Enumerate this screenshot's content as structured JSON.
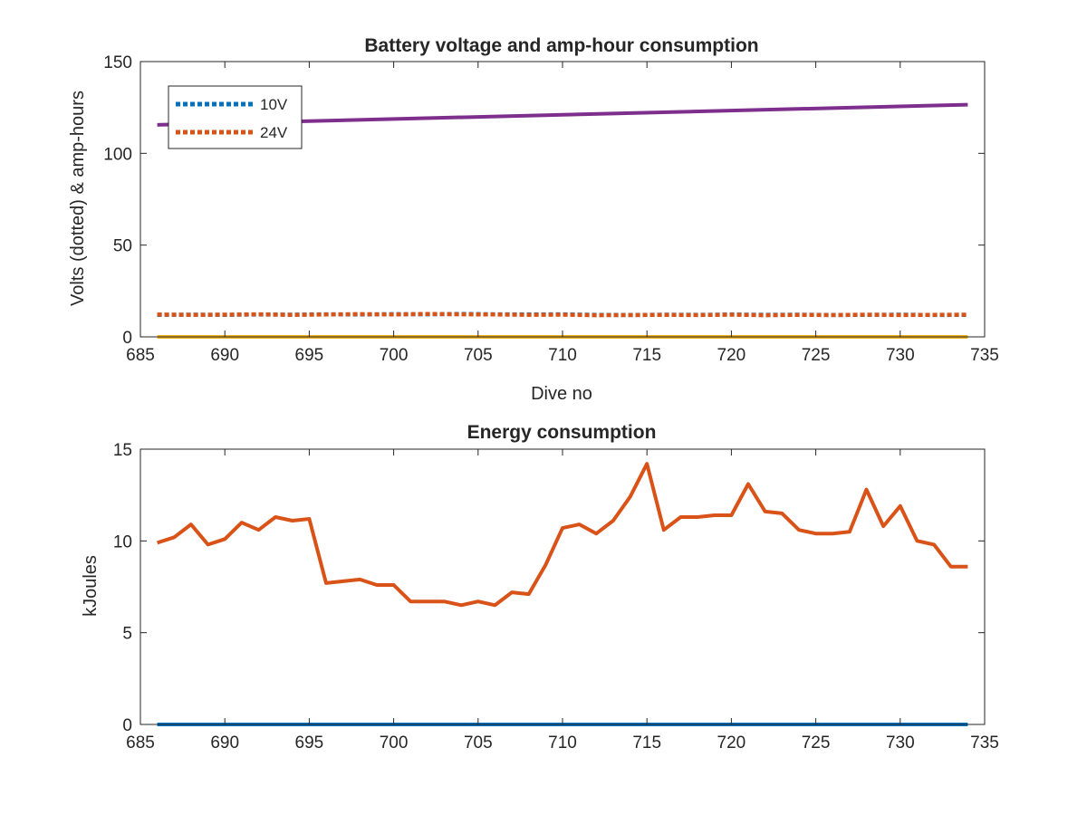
{
  "colors": {
    "series_10v": "#0072BD",
    "series_24v": "#D95319",
    "series_ah": "#7E2F8E",
    "series_zero": "#EDB120",
    "axes": "#262626",
    "background": "#ffffff"
  },
  "chart_data": [
    {
      "type": "line",
      "title": "Battery voltage and amp-hour consumption",
      "xlabel": "Dive no",
      "ylabel": "Volts (dotted) & amp-hours",
      "xlim": [
        685,
        735
      ],
      "ylim": [
        0,
        150
      ],
      "xticks": [
        685,
        690,
        695,
        700,
        705,
        710,
        715,
        720,
        725,
        730,
        735
      ],
      "yticks": [
        0,
        50,
        100,
        150
      ],
      "grid": false,
      "legend": {
        "placement": "top-left",
        "entries": [
          "10V",
          "24V"
        ]
      },
      "series": [
        {
          "name": "10V",
          "style": "dotted",
          "color": "#0072BD",
          "x": [
            686,
            688,
            690,
            692,
            694,
            696,
            698,
            700,
            702,
            704,
            706,
            708,
            710,
            712,
            714,
            716,
            718,
            720,
            722,
            724,
            726,
            728,
            730,
            732,
            734
          ],
          "y": [
            12.0,
            12.1,
            12.0,
            12.2,
            12.1,
            12.3,
            12.2,
            12.4,
            12.3,
            12.5,
            12.3,
            12.2,
            12.3,
            12.0,
            11.9,
            12.1,
            12.0,
            12.2,
            12.0,
            12.1,
            11.9,
            12.0,
            12.1,
            11.9,
            12.0
          ]
        },
        {
          "name": "24V",
          "style": "dotted",
          "color": "#D95319",
          "x": [
            686,
            688,
            690,
            692,
            694,
            696,
            698,
            700,
            702,
            704,
            706,
            708,
            710,
            712,
            714,
            716,
            718,
            720,
            722,
            724,
            726,
            728,
            730,
            732,
            734
          ],
          "y": [
            12.2,
            12.0,
            12.1,
            12.3,
            12.0,
            12.2,
            12.4,
            12.2,
            12.5,
            12.3,
            12.2,
            12.0,
            12.1,
            11.8,
            11.9,
            12.0,
            11.9,
            12.1,
            11.8,
            12.0,
            11.9,
            12.1,
            11.9,
            12.0,
            12.1
          ]
        },
        {
          "style": "solid",
          "color": "#7E2F8E",
          "x": [
            686,
            734
          ],
          "y": [
            115.5,
            126.5
          ]
        },
        {
          "style": "solid",
          "color": "#EDB120",
          "x": [
            686,
            734
          ],
          "y": [
            0,
            0
          ]
        }
      ]
    },
    {
      "type": "line",
      "title": "Energy consumption",
      "xlabel": "",
      "ylabel": "kJoules",
      "xlim": [
        685,
        735
      ],
      "ylim": [
        0,
        15
      ],
      "xticks": [
        685,
        690,
        695,
        700,
        705,
        710,
        715,
        720,
        725,
        730,
        735
      ],
      "yticks": [
        0,
        5,
        10,
        15
      ],
      "grid": false,
      "series": [
        {
          "style": "solid",
          "color": "#D95319",
          "x": [
            686,
            687,
            688,
            689,
            690,
            691,
            692,
            693,
            694,
            695,
            696,
            697,
            698,
            699,
            700,
            701,
            702,
            703,
            704,
            705,
            706,
            707,
            708,
            709,
            710,
            711,
            712,
            713,
            714,
            715,
            716,
            717,
            718,
            719,
            720,
            721,
            722,
            723,
            724,
            725,
            726,
            727,
            728,
            729,
            730,
            731,
            732,
            733,
            734
          ],
          "y": [
            9.9,
            10.2,
            10.9,
            9.8,
            10.1,
            11.0,
            10.6,
            11.3,
            11.1,
            11.2,
            7.7,
            7.8,
            7.9,
            7.6,
            7.6,
            6.7,
            6.7,
            6.7,
            6.5,
            6.7,
            6.5,
            7.2,
            7.1,
            8.7,
            10.7,
            10.9,
            10.4,
            11.1,
            12.4,
            14.2,
            10.6,
            11.3,
            11.3,
            11.4,
            11.4,
            13.1,
            11.6,
            11.5,
            10.6,
            10.4,
            10.4,
            10.5,
            12.8,
            10.8,
            11.9,
            10.0,
            9.8,
            8.6,
            8.6
          ]
        },
        {
          "style": "solid",
          "color": "#0072BD",
          "x": [
            686,
            734
          ],
          "y": [
            0,
            0
          ]
        }
      ]
    }
  ]
}
